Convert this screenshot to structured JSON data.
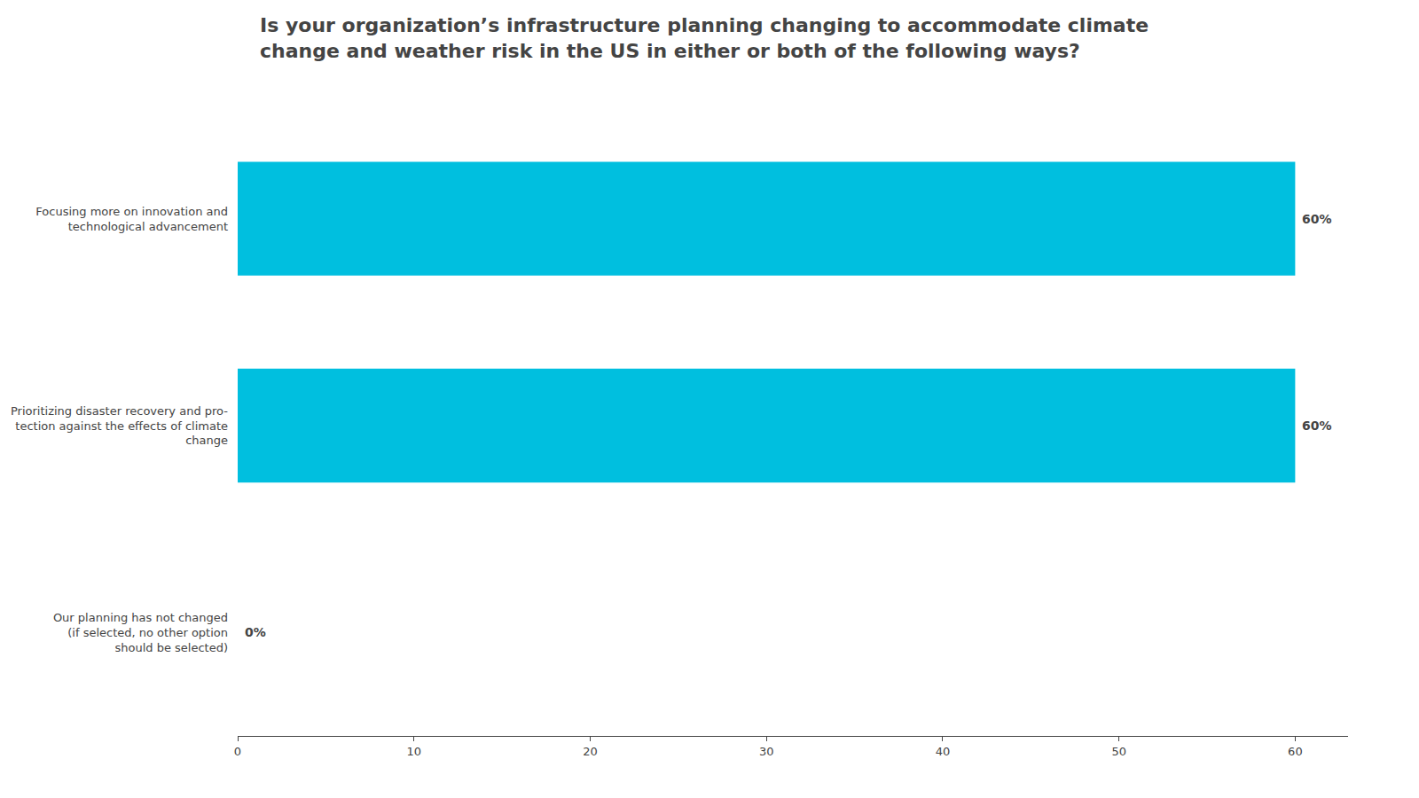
{
  "chart_data": {
    "type": "bar",
    "orientation": "horizontal",
    "title": "Is your organization’s infrastructure planning changing to accommodate climate\nchange and weather risk in the US in either or both of the following ways?",
    "categories": [
      "Our planning has not changed\n(if selected, no other option\nshould be selected)",
      "Prioritizing disaster recovery and pro-\ntection against the effects of climate\nchange",
      "Focusing more on innovation and\ntechnological advancement"
    ],
    "values": [
      0,
      60,
      60
    ],
    "value_labels": [
      "0%",
      "60%",
      "60%"
    ],
    "data_labels": true,
    "color": "#00BFDF",
    "xlim": [
      0,
      63
    ],
    "xticks": [
      0,
      10,
      20,
      30,
      40,
      50,
      60
    ],
    "grid": false
  }
}
